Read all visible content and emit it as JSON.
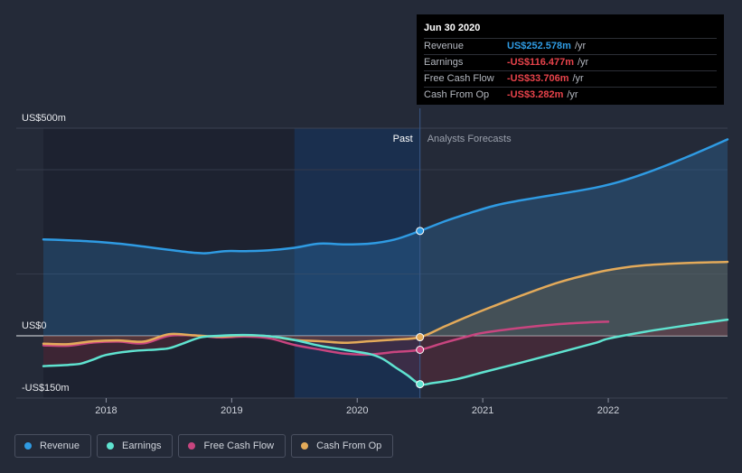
{
  "tooltip": {
    "date": "Jun 30 2020",
    "rows": [
      {
        "label": "Revenue",
        "value": "US$252.578m",
        "unit": "/yr",
        "color": "#2f9be3"
      },
      {
        "label": "Earnings",
        "value": "-US$116.477m",
        "unit": "/yr",
        "color": "#e8434b"
      },
      {
        "label": "Free Cash Flow",
        "value": "-US$33.706m",
        "unit": "/yr",
        "color": "#e8434b"
      },
      {
        "label": "Cash From Op",
        "value": "-US$3.282m",
        "unit": "/yr",
        "color": "#e8434b"
      }
    ]
  },
  "legend": [
    {
      "label": "Revenue",
      "color": "#2f9be3"
    },
    {
      "label": "Earnings",
      "color": "#5fe3d0"
    },
    {
      "label": "Free Cash Flow",
      "color": "#c8457f"
    },
    {
      "label": "Cash From Op",
      "color": "#e3aa5a"
    }
  ],
  "chart_data": {
    "type": "line",
    "y_tick_labels": [
      "US$500m",
      "US$0",
      "-US$150m"
    ],
    "x_tick_labels": [
      "2018",
      "2019",
      "2020",
      "2021",
      "2022"
    ],
    "past_label": "Past",
    "forecast_label": "Analysts Forecasts",
    "ylim": [
      -150,
      500
    ],
    "xlim": [
      2017.5,
      2022.95
    ],
    "past_end": 2020.5,
    "highlight_start": 2019.5,
    "series": [
      {
        "name": "Revenue",
        "color": "#2f9be3",
        "x": [
          2017.5,
          2017.7,
          2017.9,
          2018.1,
          2018.3,
          2018.5,
          2018.7,
          2018.8,
          2018.95,
          2019.1,
          2019.3,
          2019.5,
          2019.7,
          2019.9,
          2020.1,
          2020.3,
          2020.5,
          2020.7,
          2020.9,
          2021.1,
          2021.3,
          2021.5,
          2021.7,
          2021.9,
          2022.1,
          2022.3,
          2022.5,
          2022.7,
          2022.95
        ],
        "y": [
          232,
          230,
          227,
          222,
          215,
          207,
          200,
          199,
          204,
          204,
          206,
          212,
          222,
          220,
          222,
          232,
          252.578,
          276,
          296,
          314,
          326,
          336,
          346,
          357,
          372,
          392,
          415,
          440,
          473
        ]
      },
      {
        "name": "Earnings",
        "color": "#5fe3d0",
        "x": [
          2017.5,
          2017.7,
          2017.8,
          2017.9,
          2018.0,
          2018.2,
          2018.4,
          2018.5,
          2018.6,
          2018.75,
          2018.9,
          2019.1,
          2019.3,
          2019.5,
          2019.7,
          2019.9,
          2020.1,
          2020.2,
          2020.3,
          2020.4,
          2020.5,
          2020.6,
          2020.8,
          2021.0,
          2021.3,
          2021.6,
          2021.9,
          2022.0,
          2022.3,
          2022.6,
          2022.95
        ],
        "y": [
          -73,
          -70,
          -67,
          -57,
          -46,
          -37,
          -33,
          -30,
          -20,
          -4,
          0,
          2,
          -1,
          -10,
          -24,
          -34,
          -44,
          -55,
          -75,
          -95,
          -116.477,
          -114,
          -104,
          -88,
          -65,
          -41,
          -17,
          -7,
          10,
          24,
          39
        ]
      },
      {
        "name": "Free Cash Flow",
        "color": "#c8457f",
        "x": [
          2017.5,
          2017.7,
          2017.9,
          2018.1,
          2018.3,
          2018.5,
          2018.7,
          2018.9,
          2019.1,
          2019.3,
          2019.5,
          2019.7,
          2019.9,
          2020.1,
          2020.3,
          2020.5,
          2020.7,
          2020.9,
          2021.0,
          2021.3,
          2021.6,
          2021.9,
          2022.0
        ],
        "y": [
          -23,
          -24,
          -16,
          -14,
          -18,
          0,
          1,
          -4,
          -2,
          -6,
          -22,
          -33,
          -43,
          -45,
          -39,
          -33.706,
          -16,
          0,
          7,
          19,
          28,
          33,
          34
        ]
      },
      {
        "name": "Cash From Op",
        "color": "#e3aa5a",
        "x": [
          2017.5,
          2017.7,
          2017.9,
          2018.1,
          2018.3,
          2018.5,
          2018.7,
          2018.9,
          2019.1,
          2019.3,
          2019.5,
          2019.7,
          2019.9,
          2020.1,
          2020.3,
          2020.5,
          2020.7,
          2020.9,
          2021.1,
          2021.3,
          2021.6,
          2021.9,
          2022.1,
          2022.3,
          2022.6,
          2022.95
        ],
        "y": [
          -19,
          -20,
          -13,
          -11,
          -14,
          4,
          1,
          -2,
          1,
          -1,
          -10,
          -13,
          -17,
          -13,
          -9,
          -3.282,
          23,
          49,
          73,
          96,
          128,
          152,
          163,
          170,
          175,
          178
        ]
      }
    ],
    "highlight_x": 2020.5
  }
}
